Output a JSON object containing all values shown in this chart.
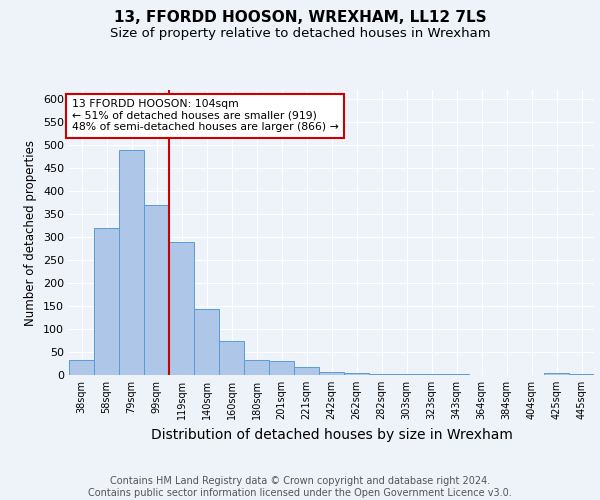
{
  "title": "13, FFORDD HOOSON, WREXHAM, LL12 7LS",
  "subtitle": "Size of property relative to detached houses in Wrexham",
  "xlabel": "Distribution of detached houses by size in Wrexham",
  "ylabel": "Number of detached properties",
  "categories": [
    "38sqm",
    "58sqm",
    "79sqm",
    "99sqm",
    "119sqm",
    "140sqm",
    "160sqm",
    "180sqm",
    "201sqm",
    "221sqm",
    "242sqm",
    "262sqm",
    "282sqm",
    "303sqm",
    "323sqm",
    "343sqm",
    "364sqm",
    "384sqm",
    "404sqm",
    "425sqm",
    "445sqm"
  ],
  "values": [
    32,
    320,
    490,
    370,
    290,
    143,
    75,
    33,
    30,
    18,
    7,
    5,
    3,
    3,
    2,
    2,
    1,
    0,
    0,
    5,
    3
  ],
  "bar_color": "#aec6e8",
  "bar_edgecolor": "#5b9bd5",
  "redline_x": 3.5,
  "annotation_line1": "13 FFORDD HOOSON: 104sqm",
  "annotation_line2": "← 51% of detached houses are smaller (919)",
  "annotation_line3": "48% of semi-detached houses are larger (866) →",
  "annotation_box_color": "#ffffff",
  "annotation_box_edgecolor": "#cc0000",
  "redline_color": "#cc0000",
  "ylim": [
    0,
    620
  ],
  "yticks": [
    0,
    50,
    100,
    150,
    200,
    250,
    300,
    350,
    400,
    450,
    500,
    550,
    600
  ],
  "footer": "Contains HM Land Registry data © Crown copyright and database right 2024.\nContains public sector information licensed under the Open Government Licence v3.0.",
  "background_color": "#eef2f9",
  "plot_background_color": "#eef2f9",
  "title_fontsize": 11,
  "subtitle_fontsize": 9.5,
  "xlabel_fontsize": 10,
  "ylabel_fontsize": 8.5,
  "footer_fontsize": 7
}
